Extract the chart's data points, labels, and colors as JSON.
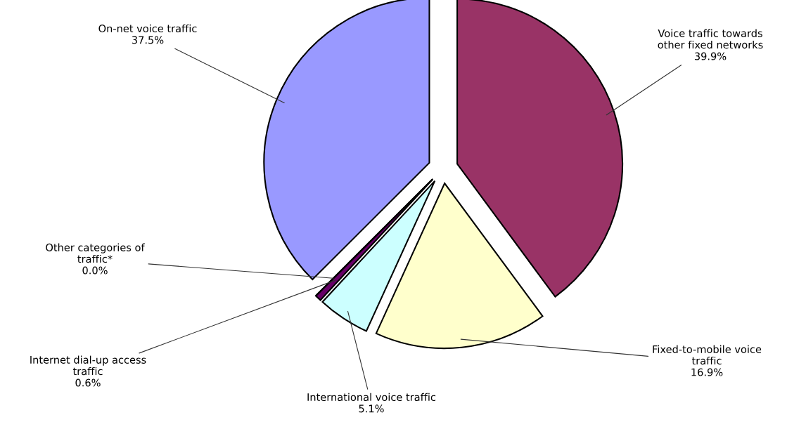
{
  "chart_data": {
    "type": "pie",
    "categories": [
      "Voice traffic towards\nother fixed networks",
      "Fixed-to-mobile voice\ntraffic",
      "International voice traffic",
      "Internet dial-up access\ntraffic",
      "Other categories of\ntraffic*",
      "On-net voice traffic"
    ],
    "values": [
      39.9,
      16.9,
      5.1,
      0.6,
      0.0,
      37.5
    ],
    "value_labels": [
      "39.9%",
      "16.9%",
      "5.1%",
      "0.6%",
      "0.0%",
      "37.5%"
    ],
    "colors": [
      "#993366",
      "#ffffcc",
      "#ccffff",
      "#660066",
      "#9999ff",
      "#9999ff"
    ],
    "legend": false
  }
}
